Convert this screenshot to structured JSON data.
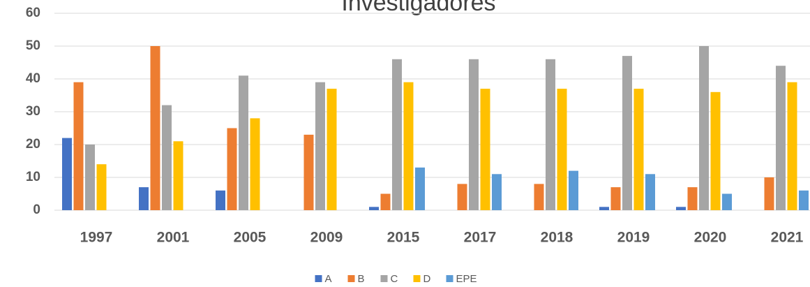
{
  "chart_data": {
    "type": "bar",
    "title": "Investigadores",
    "categories": [
      "1997",
      "2001",
      "2005",
      "2009",
      "2015",
      "2017",
      "2018",
      "2019",
      "2020",
      "2021"
    ],
    "series": [
      {
        "name": "A",
        "color": "#4472c4",
        "values": [
          22,
          7,
          6,
          0,
          1,
          0,
          0,
          1,
          1,
          0
        ]
      },
      {
        "name": "B",
        "color": "#ed7d31",
        "values": [
          39,
          50,
          25,
          23,
          5,
          8,
          8,
          7,
          7,
          10
        ]
      },
      {
        "name": "C",
        "color": "#a5a5a5",
        "values": [
          20,
          32,
          41,
          39,
          46,
          46,
          46,
          47,
          50,
          44
        ]
      },
      {
        "name": "D",
        "color": "#ffc000",
        "values": [
          14,
          21,
          28,
          37,
          39,
          37,
          37,
          37,
          36,
          39
        ]
      },
      {
        "name": "EPE",
        "color": "#5b9bd5",
        "values": [
          0,
          0,
          0,
          0,
          13,
          11,
          12,
          11,
          5,
          6
        ]
      }
    ],
    "ylim": [
      0,
      60
    ],
    "yticks": [
      0,
      10,
      20,
      30,
      40,
      50,
      60
    ],
    "grid": true,
    "legend": "bottom"
  }
}
